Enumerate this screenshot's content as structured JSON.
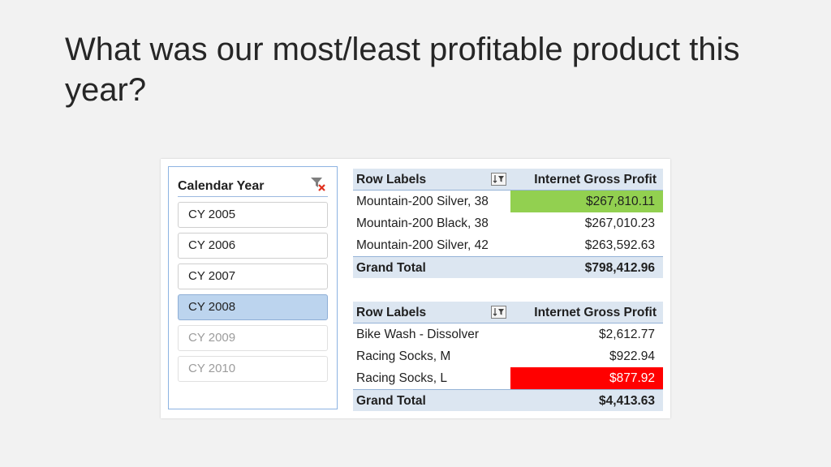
{
  "slide": {
    "title": "What was our most/least profitable product this year?"
  },
  "slicer": {
    "title": "Calendar Year",
    "items": [
      {
        "label": "CY 2005"
      },
      {
        "label": "CY 2006"
      },
      {
        "label": "CY 2007"
      },
      {
        "label": "CY 2008"
      },
      {
        "label": "CY 2009"
      },
      {
        "label": "CY 2010"
      }
    ],
    "selected": "CY 2008"
  },
  "pivot_top": {
    "row_header": "Row Labels",
    "value_header": "Internet Gross Profit",
    "rows": [
      {
        "label": "Mountain-200 Silver, 38",
        "value": "$267,810.11"
      },
      {
        "label": "Mountain-200 Black, 38",
        "value": "$267,010.23"
      },
      {
        "label": "Mountain-200 Silver, 42",
        "value": "$263,592.63"
      }
    ],
    "total_label": "Grand Total",
    "total_value": "$798,412.96",
    "highlight_color": "#92d050"
  },
  "pivot_bottom": {
    "row_header": "Row Labels",
    "value_header": "Internet Gross Profit",
    "rows": [
      {
        "label": "Bike Wash - Dissolver",
        "value": "$2,612.77"
      },
      {
        "label": "Racing Socks, M",
        "value": "$922.94"
      },
      {
        "label": "Racing Socks, L",
        "value": "$877.92"
      }
    ],
    "total_label": "Grand Total",
    "total_value": "$4,413.63",
    "highlight_color": "#ff0000"
  }
}
